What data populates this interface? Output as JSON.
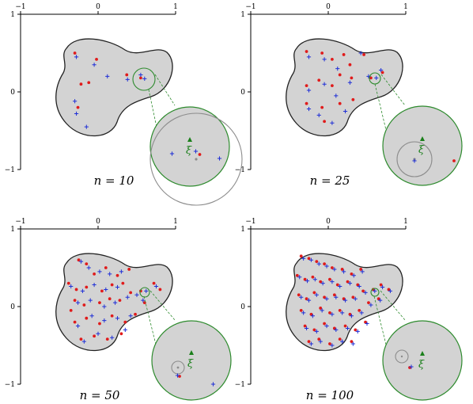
{
  "colors": {
    "region_fill": "#d3d3d3",
    "region_stroke": "#222222",
    "zoom_circle": "#2e8b2e",
    "zoom_connector": "#2e8b2e",
    "ball": "#8c8c8c",
    "red_points": "#e01b1b",
    "blue_points": "#1f2fd6",
    "xi_marker": "#1a7f1a"
  },
  "axis_tick_labels": {
    "x": [
      "−1",
      "0",
      "1"
    ],
    "y": [
      "1",
      "0",
      "−1"
    ]
  },
  "xi_symbol": "ξ",
  "panels": [
    {
      "n_label": "n = 10",
      "red": [
        [
          -0.3,
          0.5
        ],
        [
          -0.22,
          0.1
        ],
        [
          -0.12,
          0.12
        ],
        [
          -0.02,
          0.42
        ],
        [
          0.37,
          0.22
        ],
        [
          0.55,
          0.18
        ],
        [
          -0.26,
          -0.2
        ]
      ],
      "blue": [
        [
          -0.28,
          0.45
        ],
        [
          -0.3,
          -0.12
        ],
        [
          -0.28,
          -0.28
        ],
        [
          -0.15,
          -0.45
        ],
        [
          -0.05,
          0.35
        ],
        [
          0.12,
          0.2
        ],
        [
          0.38,
          0.16
        ],
        [
          0.55,
          0.22
        ],
        [
          0.6,
          0.17
        ]
      ],
      "zoom": {
        "red": [
          [
            0.25,
            -0.2
          ]
        ],
        "blue": [
          [
            -0.45,
            -0.18
          ],
          [
            0.15,
            -0.12
          ],
          [
            0.75,
            -0.3
          ]
        ]
      }
    },
    {
      "n_label": "n = 25",
      "red": [
        [
          -0.28,
          0.52
        ],
        [
          -0.08,
          0.5
        ],
        [
          0.05,
          0.42
        ],
        [
          0.2,
          0.48
        ],
        [
          0.46,
          0.48
        ],
        [
          -0.28,
          0.08
        ],
        [
          -0.12,
          0.15
        ],
        [
          0.05,
          0.08
        ],
        [
          0.15,
          0.22
        ],
        [
          0.3,
          0.18
        ],
        [
          -0.28,
          -0.15
        ],
        [
          -0.08,
          -0.2
        ],
        [
          0.15,
          -0.15
        ],
        [
          0.32,
          -0.1
        ],
        [
          -0.05,
          -0.38
        ],
        [
          0.55,
          0.18
        ],
        [
          0.7,
          0.25
        ],
        [
          0.28,
          0.35
        ]
      ],
      "blue": [
        [
          -0.25,
          0.45
        ],
        [
          -0.05,
          0.42
        ],
        [
          0.12,
          0.3
        ],
        [
          0.42,
          0.5
        ],
        [
          -0.25,
          0.02
        ],
        [
          -0.05,
          0.1
        ],
        [
          0.1,
          -0.05
        ],
        [
          0.28,
          0.12
        ],
        [
          -0.25,
          -0.22
        ],
        [
          -0.12,
          -0.3
        ],
        [
          0.05,
          -0.4
        ],
        [
          0.22,
          -0.25
        ],
        [
          0.52,
          0.2
        ],
        [
          0.62,
          0.18
        ],
        [
          0.68,
          0.28
        ]
      ],
      "zoom": {
        "red": [
          [
            0.8,
            -0.38
          ]
        ],
        "blue": [
          [
            -0.2,
            -0.38
          ]
        ]
      }
    },
    {
      "n_label": "n = 50",
      "red": [
        [
          -0.25,
          0.6
        ],
        [
          -0.15,
          0.55
        ],
        [
          -0.05,
          0.42
        ],
        [
          0.1,
          0.5
        ],
        [
          0.25,
          0.4
        ],
        [
          0.4,
          0.48
        ],
        [
          -0.38,
          0.3
        ],
        [
          -0.28,
          0.22
        ],
        [
          -0.15,
          0.25
        ],
        [
          0.05,
          0.2
        ],
        [
          0.18,
          0.28
        ],
        [
          0.32,
          0.3
        ],
        [
          -0.3,
          0.08
        ],
        [
          -0.18,
          0.02
        ],
        [
          0.02,
          0.05
        ],
        [
          0.15,
          0.1
        ],
        [
          0.28,
          0.08
        ],
        [
          0.42,
          0.18
        ],
        [
          0.55,
          0.2
        ],
        [
          0.72,
          0.3
        ],
        [
          0.8,
          0.22
        ],
        [
          -0.3,
          -0.2
        ],
        [
          -0.15,
          -0.15
        ],
        [
          0.02,
          -0.22
        ],
        [
          0.18,
          -0.12
        ],
        [
          0.35,
          -0.2
        ],
        [
          0.48,
          -0.1
        ],
        [
          -0.22,
          -0.42
        ],
        [
          -0.05,
          -0.38
        ],
        [
          0.12,
          -0.42
        ],
        [
          0.3,
          -0.35
        ],
        [
          -0.35,
          -0.05
        ],
        [
          0.6,
          0.05
        ]
      ],
      "blue": [
        [
          -0.22,
          0.58
        ],
        [
          -0.12,
          0.5
        ],
        [
          0.02,
          0.45
        ],
        [
          0.15,
          0.42
        ],
        [
          0.3,
          0.45
        ],
        [
          -0.35,
          0.26
        ],
        [
          -0.2,
          0.2
        ],
        [
          -0.05,
          0.28
        ],
        [
          0.1,
          0.22
        ],
        [
          0.25,
          0.25
        ],
        [
          -0.26,
          0.05
        ],
        [
          -0.1,
          0.08
        ],
        [
          0.08,
          0.0
        ],
        [
          0.22,
          0.05
        ],
        [
          0.38,
          0.12
        ],
        [
          0.5,
          0.15
        ],
        [
          0.62,
          0.2
        ],
        [
          0.75,
          0.26
        ],
        [
          -0.26,
          -0.25
        ],
        [
          -0.08,
          -0.12
        ],
        [
          0.08,
          -0.18
        ],
        [
          0.25,
          -0.15
        ],
        [
          0.42,
          -0.12
        ],
        [
          -0.18,
          -0.45
        ],
        [
          0.0,
          -0.35
        ],
        [
          0.18,
          -0.4
        ],
        [
          0.35,
          -0.3
        ],
        [
          0.58,
          0.08
        ]
      ],
      "zoom": {
        "red": [
          [
            -0.3,
            -0.4
          ]
        ],
        "blue": [
          [
            -0.35,
            -0.38
          ],
          [
            0.55,
            -0.6
          ]
        ]
      }
    },
    {
      "n_label": "n = 100",
      "red": [
        [
          -0.35,
          0.65
        ],
        [
          -0.25,
          0.62
        ],
        [
          -0.15,
          0.58
        ],
        [
          -0.05,
          0.55
        ],
        [
          0.05,
          0.5
        ],
        [
          0.18,
          0.48
        ],
        [
          0.3,
          0.42
        ],
        [
          0.42,
          0.48
        ],
        [
          -0.4,
          0.4
        ],
        [
          -0.3,
          0.35
        ],
        [
          -0.2,
          0.38
        ],
        [
          -0.1,
          0.32
        ],
        [
          0.02,
          0.35
        ],
        [
          0.12,
          0.28
        ],
        [
          0.25,
          0.32
        ],
        [
          0.38,
          0.28
        ],
        [
          -0.38,
          0.15
        ],
        [
          -0.28,
          0.1
        ],
        [
          -0.18,
          0.18
        ],
        [
          -0.05,
          0.12
        ],
        [
          0.08,
          0.15
        ],
        [
          0.2,
          0.1
        ],
        [
          0.32,
          0.12
        ],
        [
          0.45,
          0.2
        ],
        [
          0.58,
          0.22
        ],
        [
          0.68,
          0.28
        ],
        [
          0.78,
          0.22
        ],
        [
          -0.35,
          -0.05
        ],
        [
          -0.22,
          -0.1
        ],
        [
          -0.1,
          -0.02
        ],
        [
          0.02,
          -0.08
        ],
        [
          0.15,
          -0.05
        ],
        [
          0.28,
          -0.1
        ],
        [
          0.4,
          -0.05
        ],
        [
          0.52,
          0.05
        ],
        [
          0.65,
          0.1
        ],
        [
          -0.3,
          -0.25
        ],
        [
          -0.18,
          -0.3
        ],
        [
          -0.05,
          -0.22
        ],
        [
          0.08,
          -0.28
        ],
        [
          0.22,
          -0.25
        ],
        [
          0.35,
          -0.3
        ],
        [
          0.48,
          -0.2
        ],
        [
          -0.25,
          -0.45
        ],
        [
          -0.12,
          -0.42
        ],
        [
          0.02,
          -0.48
        ],
        [
          0.15,
          -0.42
        ],
        [
          0.3,
          -0.45
        ]
      ],
      "blue": [
        [
          -0.32,
          0.62
        ],
        [
          -0.22,
          0.6
        ],
        [
          -0.12,
          0.55
        ],
        [
          -0.02,
          0.52
        ],
        [
          0.08,
          0.48
        ],
        [
          0.2,
          0.45
        ],
        [
          0.33,
          0.4
        ],
        [
          0.44,
          0.45
        ],
        [
          -0.37,
          0.38
        ],
        [
          -0.27,
          0.33
        ],
        [
          -0.17,
          0.35
        ],
        [
          -0.07,
          0.3
        ],
        [
          0.05,
          0.32
        ],
        [
          0.15,
          0.26
        ],
        [
          0.28,
          0.3
        ],
        [
          0.4,
          0.26
        ],
        [
          -0.35,
          0.12
        ],
        [
          -0.25,
          0.08
        ],
        [
          -0.15,
          0.15
        ],
        [
          -0.02,
          0.1
        ],
        [
          0.1,
          0.12
        ],
        [
          0.22,
          0.08
        ],
        [
          0.35,
          0.1
        ],
        [
          0.48,
          0.18
        ],
        [
          0.6,
          0.2
        ],
        [
          0.7,
          0.25
        ],
        [
          0.8,
          0.2
        ],
        [
          -0.32,
          -0.08
        ],
        [
          -0.2,
          -0.12
        ],
        [
          -0.08,
          -0.05
        ],
        [
          0.05,
          -0.1
        ],
        [
          0.18,
          -0.08
        ],
        [
          0.3,
          -0.12
        ],
        [
          0.43,
          -0.08
        ],
        [
          0.55,
          0.02
        ],
        [
          0.67,
          0.08
        ],
        [
          -0.28,
          -0.28
        ],
        [
          -0.15,
          -0.32
        ],
        [
          -0.02,
          -0.25
        ],
        [
          0.1,
          -0.3
        ],
        [
          0.25,
          -0.28
        ],
        [
          0.38,
          -0.32
        ],
        [
          0.5,
          -0.22
        ],
        [
          -0.22,
          -0.48
        ],
        [
          -0.1,
          -0.45
        ],
        [
          0.05,
          -0.5
        ],
        [
          0.18,
          -0.45
        ],
        [
          0.32,
          -0.48
        ]
      ],
      "zoom": {
        "red": [
          [
            -0.32,
            -0.18
          ]
        ],
        "blue": [
          [
            -0.28,
            -0.16
          ]
        ]
      }
    }
  ]
}
